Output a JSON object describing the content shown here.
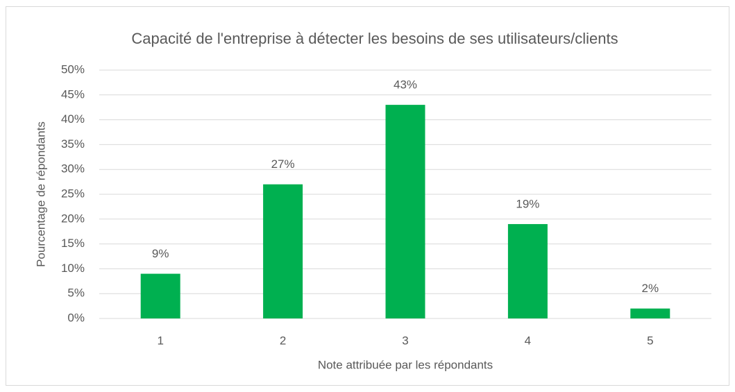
{
  "chart_data": {
    "type": "bar",
    "title": "Capacité de l'entreprise à détecter les besoins de ses utilisateurs/clients",
    "x_label": "Note attribuée par les répondants",
    "y_label": "Pourcentage de répondants",
    "categories": [
      "1",
      "2",
      "3",
      "4",
      "5"
    ],
    "values": [
      9,
      27,
      43,
      19,
      2
    ],
    "value_labels": [
      "9%",
      "27%",
      "43%",
      "19%",
      "2%"
    ],
    "color": "#00b050",
    "ylim": [
      0,
      50
    ],
    "yticks": [
      {
        "value": 0,
        "label": "0%"
      },
      {
        "value": 5,
        "label": "5%"
      },
      {
        "value": 10,
        "label": "10%"
      },
      {
        "value": 15,
        "label": "15%"
      },
      {
        "value": 20,
        "label": "20%"
      },
      {
        "value": 25,
        "label": "25%"
      },
      {
        "value": 30,
        "label": "30%"
      },
      {
        "value": 35,
        "label": "35%"
      },
      {
        "value": 40,
        "label": "40%"
      },
      {
        "value": 45,
        "label": "45%"
      },
      {
        "value": 50,
        "label": "50%"
      }
    ],
    "grid": true
  }
}
